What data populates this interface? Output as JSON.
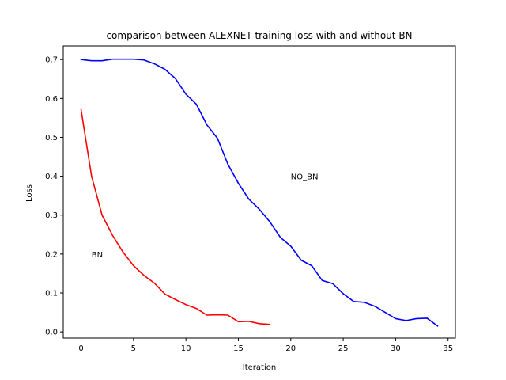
{
  "chart_data": {
    "type": "line",
    "title": "comparison between ALEXNET training loss with and without BN",
    "xlabel": "Iteration",
    "ylabel": "Loss",
    "xlim": [
      -1.7,
      35.7
    ],
    "ylim": [
      -0.016,
      0.735
    ],
    "xticks": [
      0,
      5,
      10,
      15,
      20,
      25,
      30,
      35
    ],
    "yticks": [
      0.0,
      0.1,
      0.2,
      0.3,
      0.4,
      0.5,
      0.6,
      0.7
    ],
    "grid": false,
    "series": [
      {
        "color": "#ff0000",
        "x": [
          0,
          1,
          2,
          3,
          4,
          5,
          6,
          7,
          8,
          9,
          10,
          11,
          12,
          13,
          14,
          15,
          16,
          17,
          18
        ],
        "y": [
          0.571,
          0.4,
          0.3,
          0.248,
          0.205,
          0.17,
          0.145,
          0.125,
          0.097,
          0.083,
          0.07,
          0.06,
          0.043,
          0.044,
          0.043,
          0.026,
          0.027,
          0.021,
          0.019
        ]
      },
      {
        "color": "#0000ff",
        "x": [
          0,
          1,
          2,
          3,
          4,
          5,
          6,
          7,
          8,
          9,
          10,
          11,
          12,
          13,
          14,
          15,
          16,
          17,
          18,
          19,
          20,
          21,
          22,
          23,
          24,
          25,
          26,
          27,
          28,
          29,
          30,
          31,
          32,
          33,
          34
        ],
        "y": [
          0.7,
          0.697,
          0.697,
          0.701,
          0.701,
          0.701,
          0.699,
          0.689,
          0.675,
          0.651,
          0.611,
          0.585,
          0.532,
          0.498,
          0.431,
          0.382,
          0.341,
          0.315,
          0.283,
          0.243,
          0.22,
          0.184,
          0.17,
          0.132,
          0.124,
          0.098,
          0.078,
          0.076,
          0.066,
          0.05,
          0.034,
          0.029,
          0.034,
          0.035,
          0.015
        ]
      }
    ],
    "annotations": [
      {
        "text": "BN",
        "x": 1,
        "y": 0.2
      },
      {
        "text": "NO_BN",
        "x": 20,
        "y": 0.4
      }
    ]
  }
}
